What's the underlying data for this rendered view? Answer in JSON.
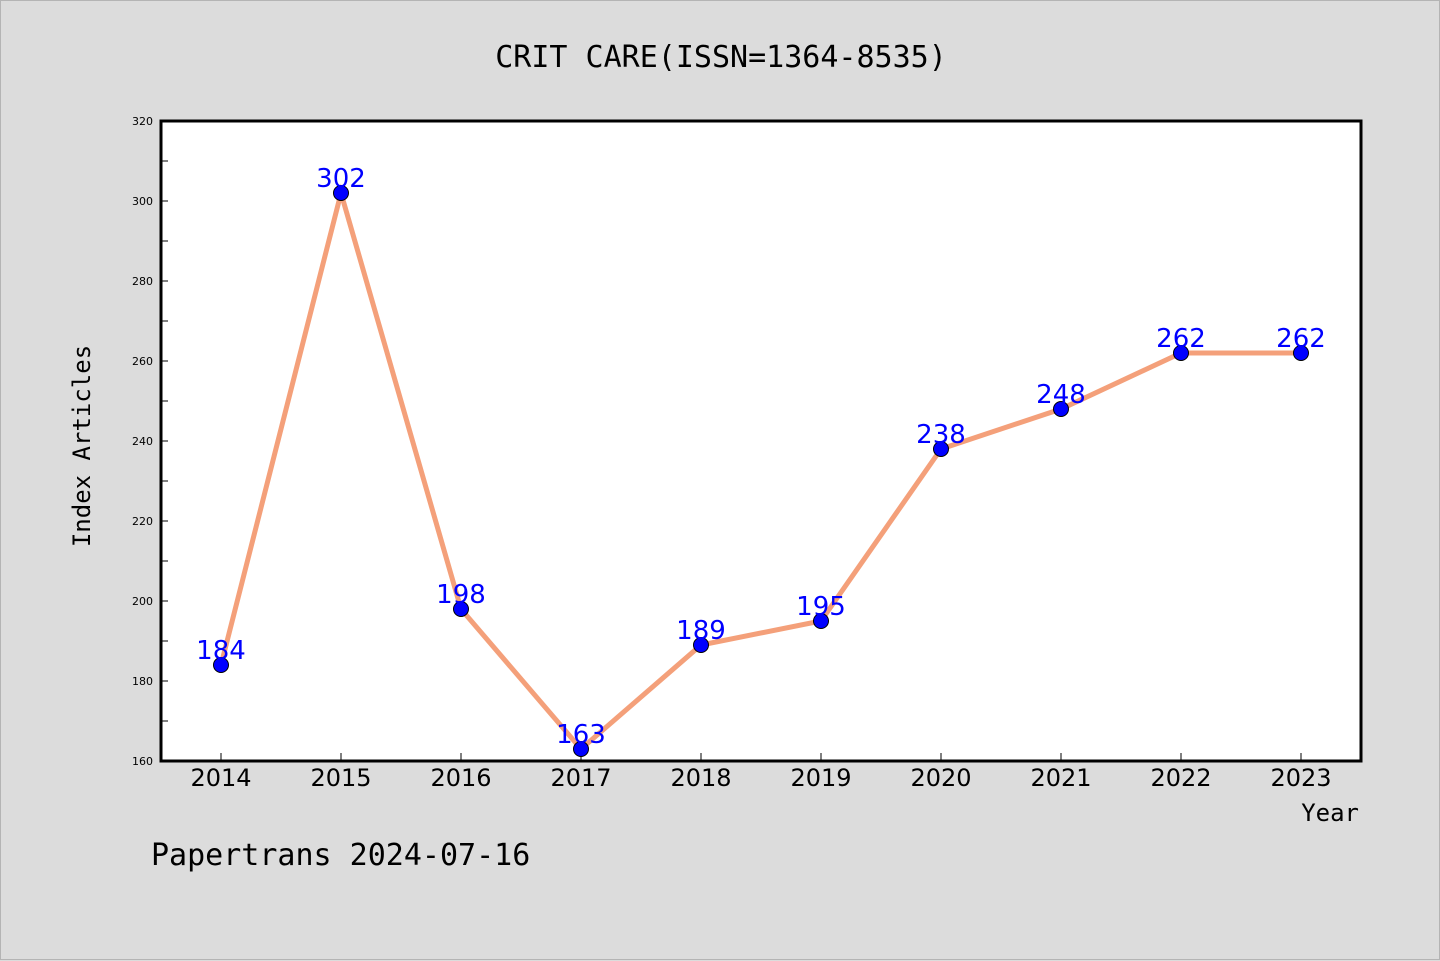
{
  "chart_data": {
    "type": "line",
    "title": "CRIT CARE(ISSN=1364-8535)",
    "xlabel": "Year",
    "ylabel": "Index Articles",
    "x": [
      "2014",
      "2015",
      "2016",
      "2017",
      "2018",
      "2019",
      "2020",
      "2021",
      "2022",
      "2023"
    ],
    "values": [
      184,
      302,
      198,
      163,
      189,
      195,
      238,
      248,
      262,
      262
    ],
    "ylim": [
      160,
      320
    ],
    "yticks": [
      160,
      180,
      200,
      220,
      240,
      260,
      280,
      300,
      320
    ],
    "grid": false,
    "legend": "none",
    "data_labels": true,
    "colors": {
      "line": "#f4a07a",
      "marker": "#0000ff",
      "label": "#0000ff",
      "background": "#dcdcdc",
      "plot_background": "#ffffff"
    }
  },
  "footer": {
    "watermark": "Papertrans 2024-07-16"
  }
}
